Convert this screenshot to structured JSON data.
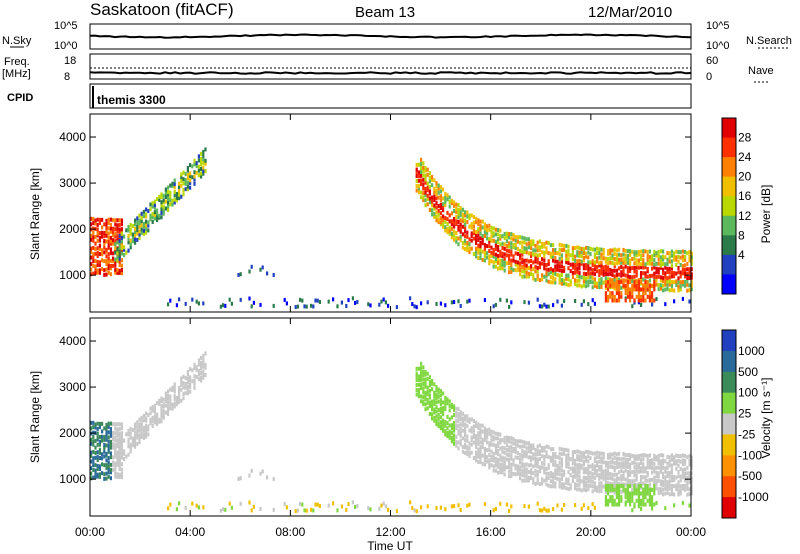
{
  "header": {
    "station": "Saskatoon (fitACF)",
    "beam": "Beam 13",
    "date": "12/Mar/2010"
  },
  "strips": {
    "nsky_label": "N.Sky",
    "nsky_ticks": [
      "10^5",
      "10^0"
    ],
    "nsearch_label": "N.Search",
    "nsearch_ticks": [
      "10^5",
      "10^0"
    ],
    "freq_label": "Freq.",
    "freq_unit": "[MHz]",
    "freq_ticks": [
      "18",
      "8"
    ],
    "nave_label": "Nave",
    "nave_ticks": [
      "60",
      "0"
    ],
    "cpid_label": "CPID",
    "cpid_value": "themis 3300"
  },
  "chart_data": [
    {
      "type": "heatmap",
      "name": "power",
      "ylabel": "Slant Range [km]",
      "xlabel": "Time UT",
      "ylim": [
        200,
        4500
      ],
      "yticks": [
        "1000",
        "2000",
        "3000",
        "4000"
      ],
      "xticks": [
        "00:00",
        "04:00",
        "08:00",
        "12:00",
        "16:00",
        "20:00",
        "00:00"
      ],
      "colorbar": {
        "label": "Power [dB]",
        "tick_labels": [
          "28",
          "24",
          "20",
          "16",
          "12",
          "8",
          "4"
        ],
        "colors": [
          "#e00000",
          "#ff3000",
          "#ff8000",
          "#f0c000",
          "#b8d800",
          "#5cb85c",
          "#2a7a4a",
          "#2040c0",
          "#0000ff"
        ]
      },
      "echo_regions": [
        {
          "t0": 0.0,
          "t1": 1.2,
          "r0": 900,
          "r1": 2200,
          "level": "high"
        },
        {
          "t0": 1.0,
          "t1": 4.5,
          "r0": 1500,
          "r1": 3500,
          "level": "mid"
        },
        {
          "t0": 13.0,
          "t1": 24.0,
          "r0": 800,
          "r1": 3500,
          "level": "high"
        },
        {
          "t0": 4.5,
          "t1": 7.5,
          "r0": 300,
          "r1": 1300,
          "level": "low"
        }
      ]
    },
    {
      "type": "heatmap",
      "name": "velocity",
      "ylabel": "Slant Range [km]",
      "xlabel": "Time UT",
      "ylim": [
        200,
        4500
      ],
      "yticks": [
        "1000",
        "2000",
        "3000",
        "4000"
      ],
      "xticks": [
        "00:00",
        "04:00",
        "08:00",
        "12:00",
        "16:00",
        "20:00",
        "00:00"
      ],
      "colorbar": {
        "label": "Velocity [m s⁻¹]",
        "tick_labels": [
          "1000",
          "500",
          "100",
          "25",
          "-25",
          "-100",
          "-500",
          "-1000"
        ],
        "colors": [
          "#2040c0",
          "#2a6a9a",
          "#3a8a5a",
          "#80d840",
          "#c8c8c8",
          "#f0c000",
          "#ff9000",
          "#ff5000",
          "#e00000"
        ]
      }
    }
  ]
}
